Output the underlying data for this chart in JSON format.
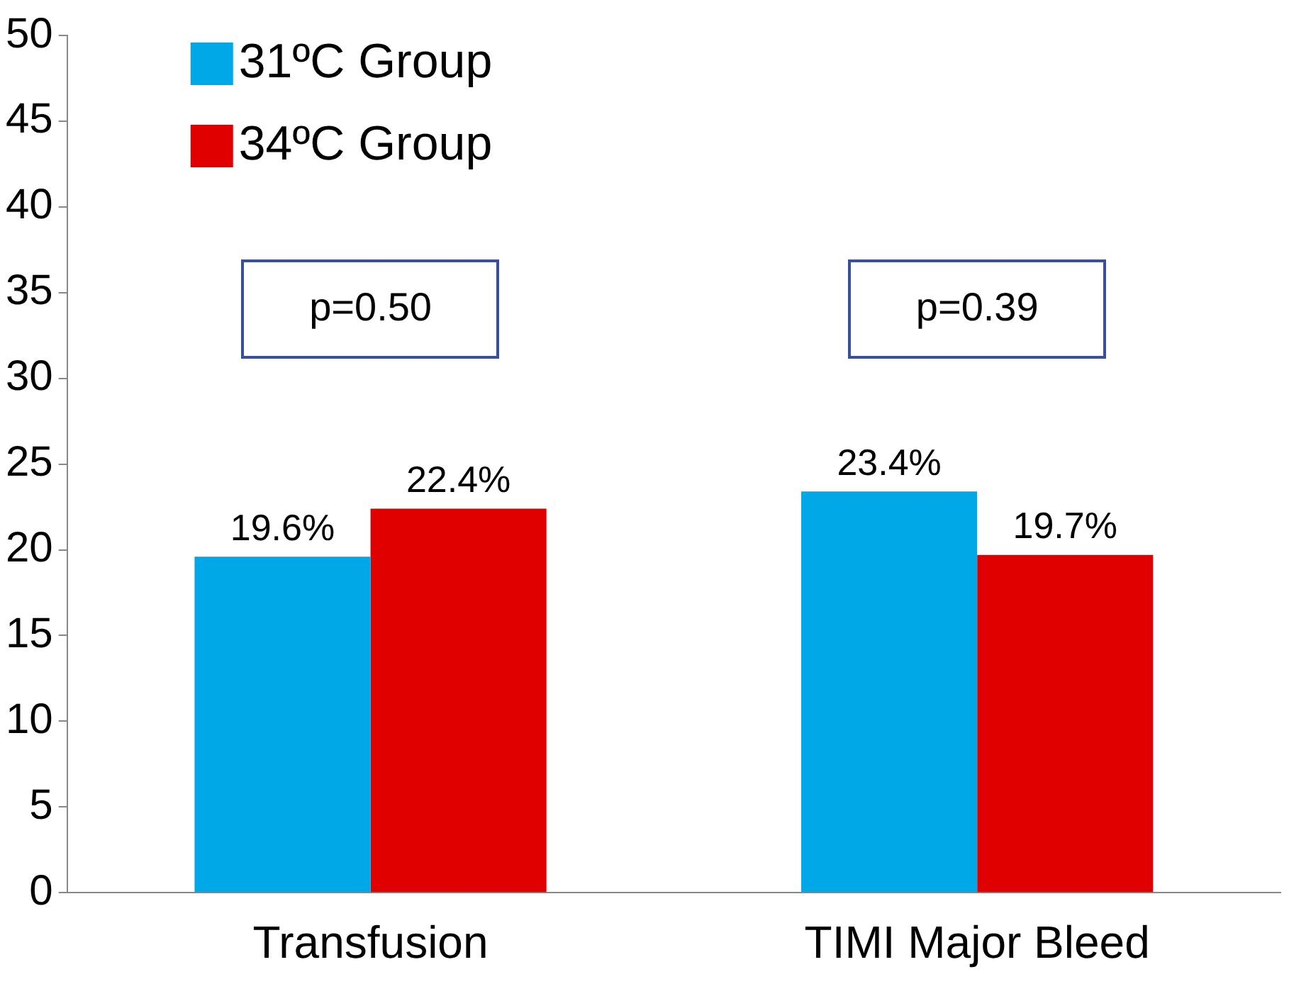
{
  "chart_data": {
    "type": "bar",
    "categories": [
      "Transfusion",
      "TIMI Major Bleed"
    ],
    "series": [
      {
        "name": "31ºC Group",
        "color": "#00a8e8",
        "values": [
          19.6,
          23.4
        ],
        "value_labels": [
          "19.6%",
          "23.4%"
        ]
      },
      {
        "name": "34ºC Group",
        "color": "#e00000",
        "values": [
          22.4,
          19.7
        ],
        "value_labels": [
          "22.4%",
          "19.7%"
        ]
      }
    ],
    "ylim": [
      0,
      50
    ],
    "yticks": [
      0,
      5,
      10,
      15,
      20,
      25,
      30,
      35,
      40,
      45,
      50
    ],
    "grid": false,
    "legend": "top left",
    "annotations": [
      "p=0.50",
      "p=0.39"
    ]
  }
}
